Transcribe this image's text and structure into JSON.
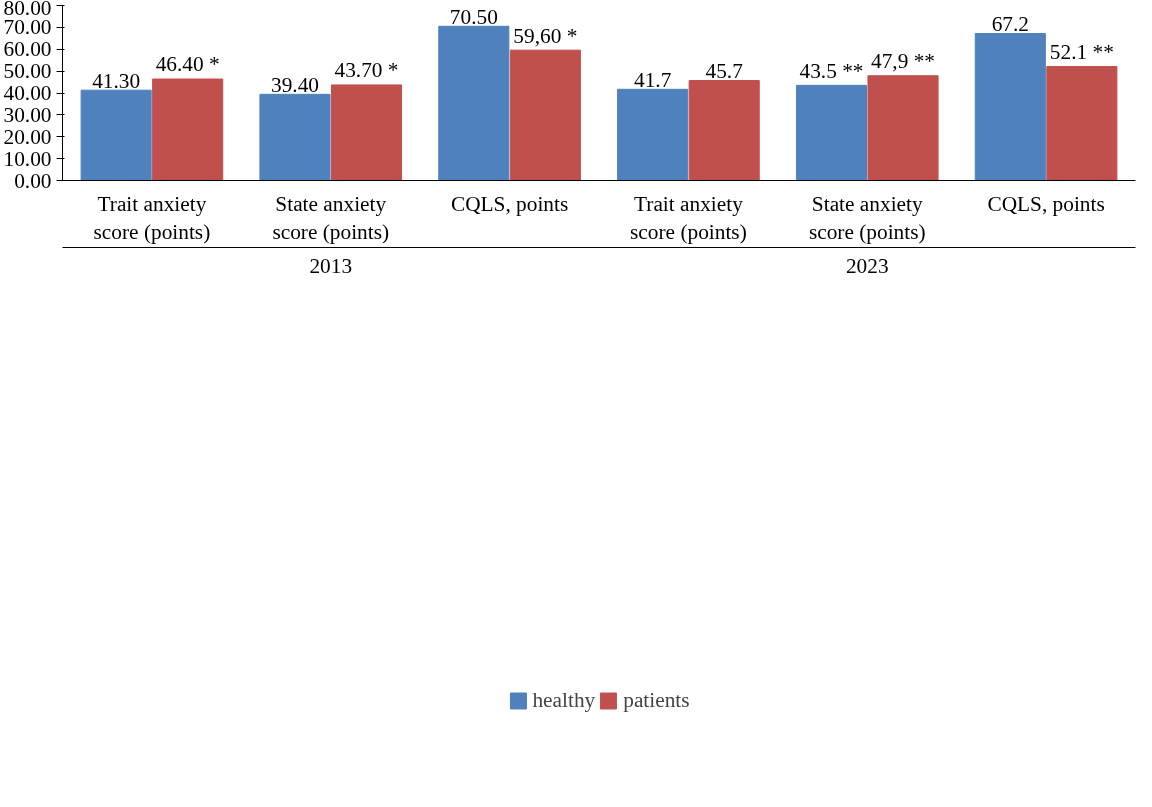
{
  "chart_data": {
    "type": "bar",
    "categories": [
      "Trait anxiety score (points)",
      "State anxiety score (points)",
      "CQLS, points",
      "Trait anxiety score (points)",
      "State anxiety score (points)",
      "CQLS, points"
    ],
    "series": [
      {
        "name": "healthy",
        "color": "#4f81bd",
        "values": [
          41.3,
          39.4,
          70.5,
          41.7,
          43.5,
          67.2
        ],
        "value_labels": [
          "41.30",
          "39.40",
          "70.50",
          "41.7",
          "43.5 **",
          "67.2"
        ]
      },
      {
        "name": "patients",
        "color": "#c0504d",
        "values": [
          46.4,
          43.7,
          59.6,
          45.7,
          47.9,
          52.1
        ],
        "value_labels": [
          "46.40 *",
          "43.70 *",
          "59,60 *",
          "45.7",
          "47,9 **",
          "52.1 **"
        ]
      }
    ],
    "annotations": [
      "2013",
      "2023"
    ],
    "ylim": [
      0,
      80
    ],
    "yticks": [
      {
        "value": 0,
        "label": "0.00"
      },
      {
        "value": 10,
        "label": "10.00"
      },
      {
        "value": 20,
        "label": "20.00"
      },
      {
        "value": 30,
        "label": "30.00"
      },
      {
        "value": 40,
        "label": "40.00"
      },
      {
        "value": 50,
        "label": "50.00"
      },
      {
        "value": 60,
        "label": "60.00"
      },
      {
        "value": 70,
        "label": "70.00"
      },
      {
        "value": 80,
        "label": "80.00"
      }
    ],
    "grid": false,
    "legend": "bottom"
  }
}
